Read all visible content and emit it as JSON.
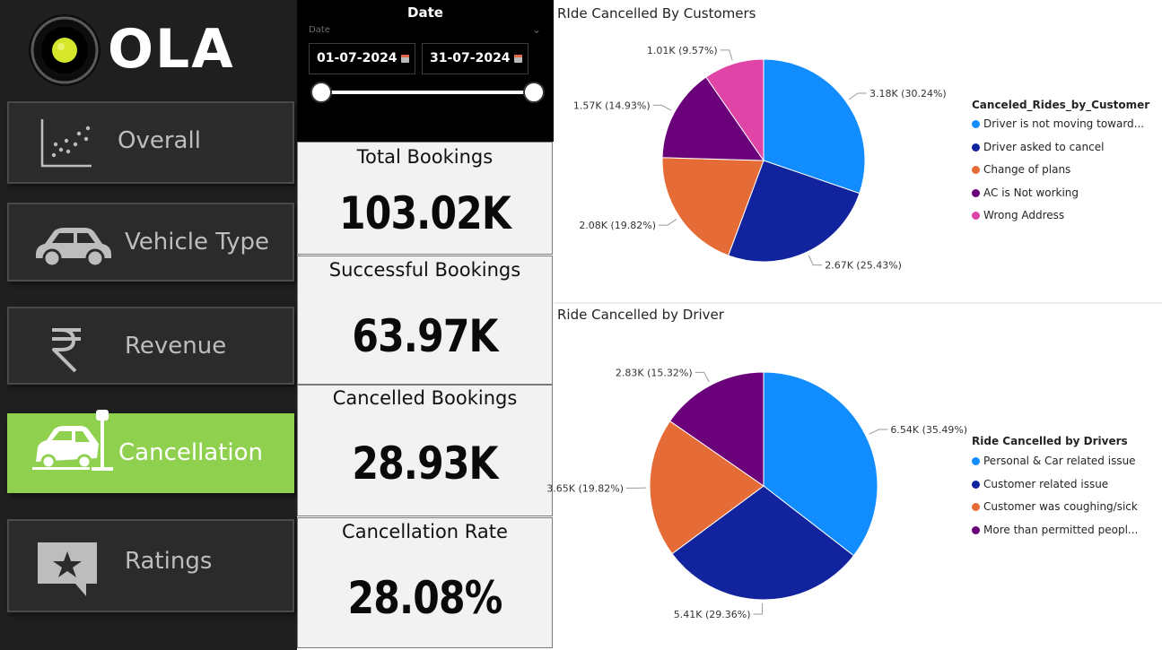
{
  "brand": {
    "name": "OLA"
  },
  "nav": [
    {
      "label": "Overall",
      "icon": "scatter-chart-icon",
      "active": false
    },
    {
      "label": "Vehicle Type",
      "icon": "car-icon",
      "active": false
    },
    {
      "label": "Revenue",
      "icon": "rupee-icon",
      "active": false
    },
    {
      "label": "Cancellation",
      "icon": "car-crash-icon",
      "active": true
    },
    {
      "label": "Ratings",
      "icon": "star-rating-icon",
      "active": false
    }
  ],
  "date_slicer": {
    "title": "Date",
    "field_label": "Date",
    "start": "01-07-2024",
    "end": "31-07-2024"
  },
  "kpis": [
    {
      "title": "Total Bookings",
      "value": "103.02K"
    },
    {
      "title": "Successful Bookings",
      "value": "63.97K"
    },
    {
      "title": "Cancelled Bookings",
      "value": "28.93K"
    },
    {
      "title": "Cancellation Rate",
      "value": "28.08%"
    }
  ],
  "colors": {
    "accent": "#8fd14f",
    "sidebar": "#1f1f1f",
    "card": "#f2f2f2"
  },
  "chart_data": [
    {
      "type": "pie",
      "title": "RIde Cancelled By Customers",
      "legend_title": "Canceled_Rides_by_Customer",
      "legend_position": "right",
      "series": [
        {
          "name": "Driver is not moving toward...",
          "value": 3.18,
          "label": "3.18K (30.24%)",
          "color": "#118dff"
        },
        {
          "name": "Driver asked to cancel",
          "value": 2.67,
          "label": "2.67K (25.43%)",
          "color": "#12239e"
        },
        {
          "name": "Change of plans",
          "value": 2.08,
          "label": "2.08K (19.82%)",
          "color": "#e66c37"
        },
        {
          "name": "AC is Not working",
          "value": 1.57,
          "label": "1.57K (14.93%)",
          "color": "#6b007b"
        },
        {
          "name": "Wrong Address",
          "value": 1.01,
          "label": "1.01K (9.57%)",
          "color": "#e044a7"
        }
      ]
    },
    {
      "type": "pie",
      "title": "Ride Cancelled by Driver",
      "legend_title": "Ride Cancelled by Drivers",
      "legend_position": "right",
      "series": [
        {
          "name": "Personal & Car related issue",
          "value": 6.54,
          "label": "6.54K (35.49%)",
          "color": "#118dff"
        },
        {
          "name": "Customer related issue",
          "value": 5.41,
          "label": "5.41K (29.36%)",
          "color": "#12239e"
        },
        {
          "name": "Customer was coughing/sick",
          "value": 3.65,
          "label": "3.65K (19.82%)",
          "color": "#e66c37"
        },
        {
          "name": "More than permitted peopl...",
          "value": 2.83,
          "label": "2.83K (15.32%)",
          "color": "#6b007b"
        }
      ]
    }
  ]
}
